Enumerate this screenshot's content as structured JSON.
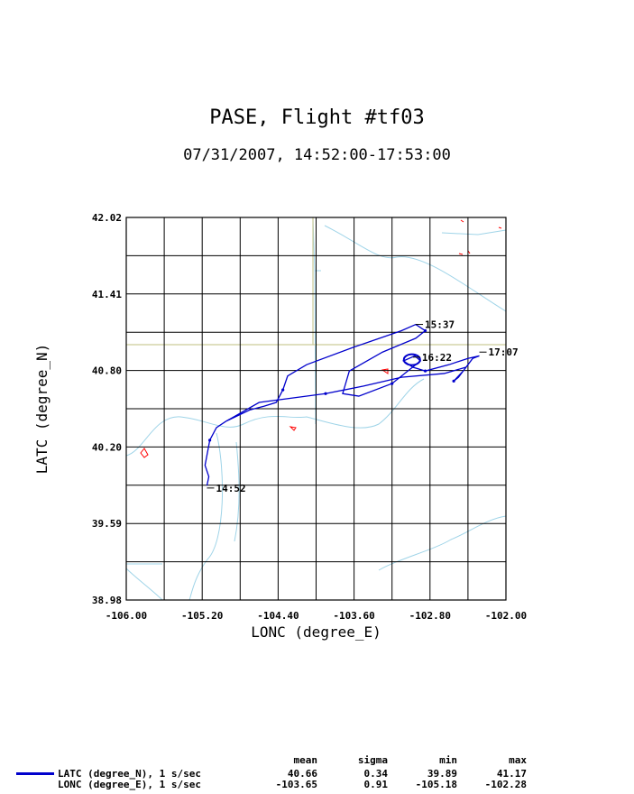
{
  "chart_data": {
    "type": "line",
    "title": "PASE, Flight #tf03",
    "subtitle": "07/31/2007, 14:52:00-17:53:00",
    "xlabel": "LONC (degree_E)",
    "ylabel": "LATC (degree_N)",
    "xlim": [
      -106.0,
      -102.0
    ],
    "ylim": [
      38.98,
      42.02
    ],
    "xticks": [
      "-106.00",
      "-105.20",
      "-104.40",
      "-103.60",
      "-102.80",
      "-102.00"
    ],
    "yticks": [
      "38.98",
      "39.59",
      "40.20",
      "40.80",
      "41.41",
      "42.02"
    ],
    "grid": true,
    "series": [
      {
        "name": "LATC (degree_N), 1 s/sec",
        "color": "#0000cc",
        "x": [
          -105.15,
          -105.13,
          -105.17,
          -105.12,
          -105.05,
          -104.95,
          -104.7,
          -104.55,
          -104.42,
          -104.35,
          -104.3,
          -104.1,
          -103.6,
          -103.1,
          -102.95,
          -102.85,
          -102.95,
          -103.3,
          -103.65,
          -103.72,
          -103.55,
          -103.2,
          -103.0,
          -102.9,
          -102.96,
          -103.08,
          -102.98,
          -102.85,
          -102.6,
          -102.4,
          -102.28,
          -102.35,
          -102.45,
          -102.55,
          -102.5,
          -102.42,
          -102.65,
          -103.1,
          -103.5,
          -103.9,
          -104.6,
          -104.95
        ],
        "y": [
          39.89,
          39.96,
          40.05,
          40.25,
          40.35,
          40.4,
          40.49,
          40.52,
          40.55,
          40.65,
          40.76,
          40.85,
          40.99,
          41.12,
          41.17,
          41.12,
          41.06,
          40.95,
          40.8,
          40.62,
          40.6,
          40.7,
          40.82,
          40.88,
          40.92,
          40.88,
          40.83,
          40.8,
          40.85,
          40.9,
          40.92,
          40.9,
          40.8,
          40.72,
          40.75,
          40.83,
          40.78,
          40.75,
          40.68,
          40.62,
          40.55,
          40.4
        ]
      }
    ],
    "annotations": [
      {
        "text": "14:52",
        "x": -105.15,
        "y": 39.87
      },
      {
        "text": "15:37",
        "x": -102.95,
        "y": 41.17
      },
      {
        "text": "16:22",
        "x": -102.98,
        "y": 40.91
      },
      {
        "text": "17:07",
        "x": -102.28,
        "y": 40.95
      }
    ],
    "stats": {
      "headers": [
        "mean",
        "sigma",
        "min",
        "max"
      ],
      "rows": [
        {
          "label": "LATC (degree_N), 1 s/sec",
          "mean": "40.66",
          "sigma": "0.34",
          "min": "39.89",
          "max": "41.17"
        },
        {
          "label": "LONC (degree_E), 1 s/sec",
          "mean": "-103.65",
          "sigma": "0.91",
          "min": "-105.18",
          "max": "-102.28"
        }
      ]
    }
  }
}
